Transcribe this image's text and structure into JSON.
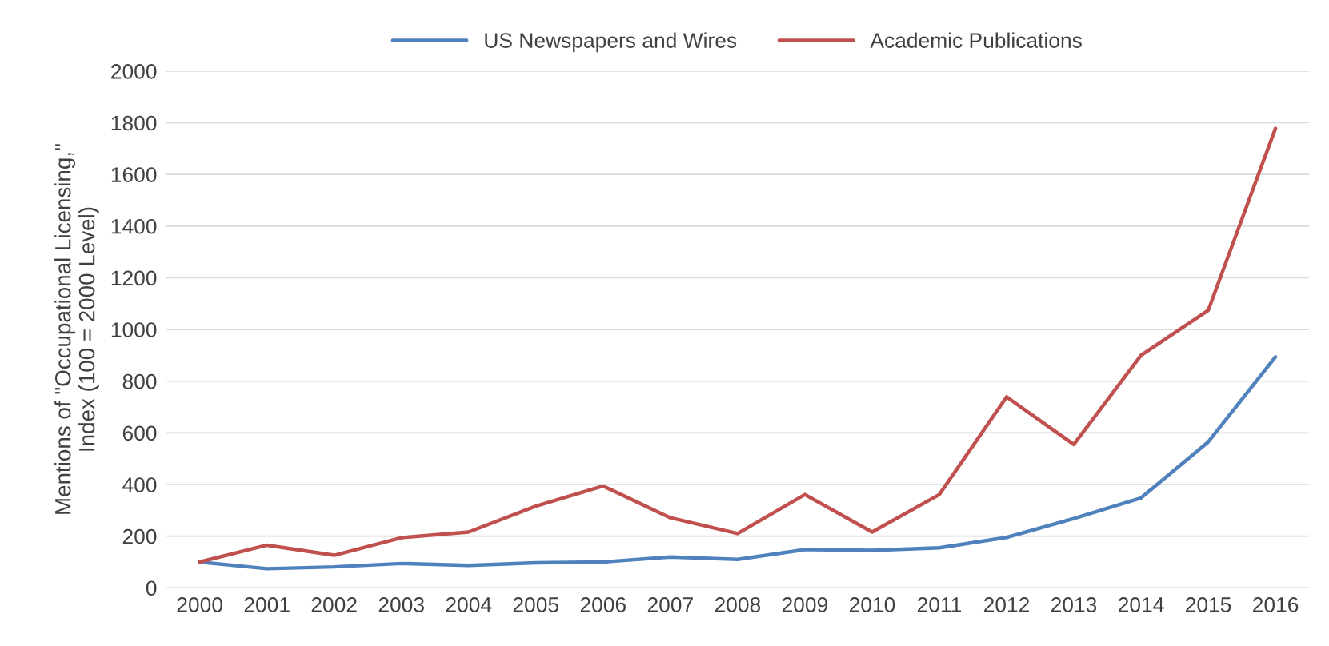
{
  "chart_data": {
    "type": "line",
    "ylabel": "Mentions of \"Occupational Licensing,\"\nIndex (100 = 2000 Level)",
    "categories": [
      "2000",
      "2001",
      "2002",
      "2003",
      "2004",
      "2005",
      "2006",
      "2007",
      "2008",
      "2009",
      "2010",
      "2011",
      "2012",
      "2013",
      "2014",
      "2015",
      "2016"
    ],
    "series": [
      {
        "name": "US Newspapers and Wires",
        "color": "#4f81bd",
        "values": [
          100,
          74,
          81,
          94,
          87,
          97,
          100,
          119,
          110,
          148,
          145,
          155,
          195,
          268,
          348,
          565,
          894
        ]
      },
      {
        "name": "Academic Publications",
        "color": "#c0504d",
        "values": [
          100,
          165,
          126,
          194,
          216,
          316,
          394,
          271,
          210,
          361,
          216,
          361,
          739,
          555,
          900,
          1074,
          1778
        ]
      }
    ],
    "ylim": [
      0,
      2000
    ],
    "yticks": [
      0,
      200,
      400,
      600,
      800,
      1000,
      1200,
      1400,
      1600,
      1800,
      2000
    ],
    "grid": "y",
    "legend": "top",
    "marker": "none",
    "line_style": "solid"
  }
}
